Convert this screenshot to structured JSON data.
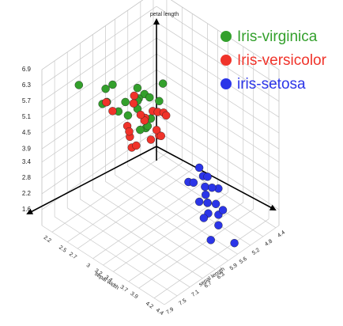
{
  "chart_data": {
    "type": "scatter3d",
    "zlabel": "petal length",
    "xlabel": "sepal length",
    "ylabel": "sepal width",
    "xlim": [
      4.3,
      7.9
    ],
    "ylim": [
      2.0,
      4.4
    ],
    "zlim": [
      1.0,
      6.9
    ],
    "xticks": [
      4.4,
      4.8,
      5.2,
      5.6,
      5.9,
      6.3,
      6.7,
      7.1,
      7.5,
      7.9
    ],
    "yticks": [
      2.2,
      2.5,
      2.7,
      3,
      3.2,
      3.4,
      3.7,
      3.9,
      4.2,
      4.4
    ],
    "zticks": [
      1.6,
      2.2,
      2.8,
      3.4,
      3.9,
      4.5,
      5.1,
      5.7,
      6.3,
      6.9
    ],
    "grid": true,
    "legend": "upper right",
    "series": [
      {
        "name": "Iris-virginica",
        "color": "#33a02c",
        "x": [
          6.3,
          5.8,
          7.1,
          6.3,
          6.5,
          7.6,
          4.9,
          7.3,
          6.7,
          7.2,
          6.5,
          6.4,
          6.8,
          5.7,
          5.8,
          6.4,
          6.5,
          7.7,
          7.7,
          6.0
        ],
        "y": [
          3.3,
          2.7,
          3.0,
          2.9,
          3.0,
          3.0,
          2.5,
          2.9,
          2.5,
          3.6,
          3.2,
          2.7,
          3.0,
          2.5,
          2.8,
          3.2,
          3.0,
          3.8,
          2.6,
          2.2
        ],
        "z": [
          6.0,
          5.1,
          5.9,
          5.6,
          5.8,
          6.6,
          4.5,
          6.3,
          5.8,
          6.1,
          5.1,
          5.3,
          5.5,
          5.0,
          5.1,
          5.3,
          5.5,
          6.7,
          6.9,
          5.0
        ]
      },
      {
        "name": "Iris-versicolor",
        "color": "#f0332a",
        "x": [
          7.0,
          6.4,
          6.9,
          5.5,
          6.5,
          5.7,
          6.3,
          4.9,
          6.6,
          5.2,
          5.0,
          5.9,
          6.0,
          6.1,
          5.6,
          6.7,
          5.6,
          5.8,
          6.2,
          5.6
        ],
        "y": [
          3.2,
          3.2,
          3.1,
          2.3,
          2.8,
          2.8,
          3.3,
          2.4,
          2.9,
          2.7,
          2.0,
          3.0,
          2.2,
          2.9,
          2.9,
          3.1,
          3.0,
          2.7,
          2.2,
          2.5
        ],
        "z": [
          4.7,
          4.5,
          4.9,
          4.0,
          4.6,
          4.5,
          4.7,
          3.3,
          4.6,
          3.9,
          3.5,
          4.2,
          4.0,
          4.7,
          3.6,
          4.4,
          4.5,
          4.1,
          4.5,
          3.9
        ]
      },
      {
        "name": "iris-setosa",
        "color": "#2b35e8",
        "x": [
          5.1,
          4.9,
          4.7,
          4.6,
          5.0,
          5.4,
          4.6,
          5.0,
          4.4,
          4.9,
          5.4,
          4.8,
          4.3,
          5.8,
          5.7,
          5.4,
          5.1,
          5.7,
          5.1,
          5.2
        ],
        "y": [
          3.5,
          3.0,
          3.2,
          3.1,
          3.6,
          3.9,
          3.4,
          3.4,
          2.9,
          3.1,
          3.7,
          3.4,
          3.0,
          4.0,
          4.4,
          3.9,
          3.5,
          3.8,
          3.8,
          3.4
        ],
        "z": [
          1.4,
          1.4,
          1.3,
          1.5,
          1.4,
          1.7,
          1.4,
          1.5,
          1.4,
          1.5,
          1.5,
          1.6,
          1.1,
          1.2,
          1.5,
          1.3,
          1.4,
          1.7,
          1.5,
          1.4
        ]
      }
    ]
  }
}
